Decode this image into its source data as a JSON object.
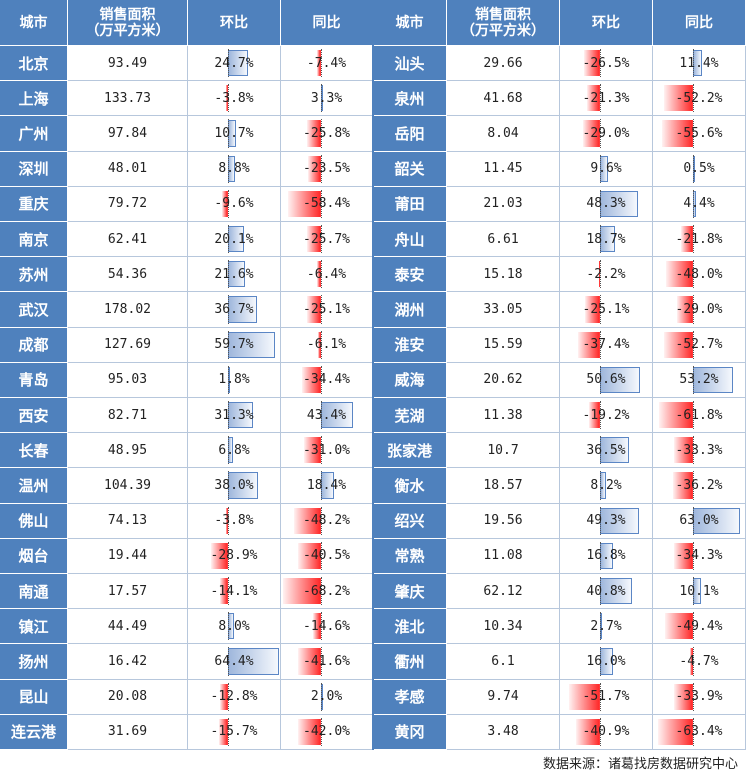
{
  "headers": {
    "city": "城市",
    "area": "销售面积\n（万平方米）",
    "mom": "环比",
    "yoy": "同比"
  },
  "source": "数据来源：诸葛找房数据研究中心",
  "colors": {
    "header_bg": "#4f81bd",
    "positive_bar": "#5b86c5",
    "negative_bar": "#ff2a2a"
  },
  "chart_data": {
    "type": "table",
    "columns": [
      "城市",
      "销售面积（万平方米）",
      "环比",
      "同比"
    ],
    "left_rows": [
      {
        "city": "北京",
        "area": "93.49",
        "mom": 24.7,
        "mom_text": "24.7%",
        "yoy": -7.4,
        "yoy_text": "-7.4%"
      },
      {
        "city": "上海",
        "area": "133.73",
        "mom": -3.8,
        "mom_text": "-3.8%",
        "yoy": 3.3,
        "yoy_text": "3.3%"
      },
      {
        "city": "广州",
        "area": "97.84",
        "mom": 10.7,
        "mom_text": "10.7%",
        "yoy": -25.8,
        "yoy_text": "-25.8%"
      },
      {
        "city": "深圳",
        "area": "48.01",
        "mom": 8.8,
        "mom_text": "8.8%",
        "yoy": -23.5,
        "yoy_text": "-23.5%"
      },
      {
        "city": "重庆",
        "area": "79.72",
        "mom": -9.6,
        "mom_text": "-9.6%",
        "yoy": -58.4,
        "yoy_text": "-58.4%"
      },
      {
        "city": "南京",
        "area": "62.41",
        "mom": 20.1,
        "mom_text": "20.1%",
        "yoy": -25.7,
        "yoy_text": "-25.7%"
      },
      {
        "city": "苏州",
        "area": "54.36",
        "mom": 21.6,
        "mom_text": "21.6%",
        "yoy": -6.4,
        "yoy_text": "-6.4%"
      },
      {
        "city": "武汉",
        "area": "178.02",
        "mom": 36.7,
        "mom_text": "36.7%",
        "yoy": -25.1,
        "yoy_text": "-25.1%"
      },
      {
        "city": "成都",
        "area": "127.69",
        "mom": 59.7,
        "mom_text": "59.7%",
        "yoy": -6.1,
        "yoy_text": "-6.1%"
      },
      {
        "city": "青岛",
        "area": "95.03",
        "mom": 1.8,
        "mom_text": "1.8%",
        "yoy": -34.4,
        "yoy_text": "-34.4%"
      },
      {
        "city": "西安",
        "area": "82.71",
        "mom": 31.3,
        "mom_text": "31.3%",
        "yoy": 43.4,
        "yoy_text": "43.4%"
      },
      {
        "city": "长春",
        "area": "48.95",
        "mom": 6.8,
        "mom_text": "6.8%",
        "yoy": -31.0,
        "yoy_text": "-31.0%"
      },
      {
        "city": "温州",
        "area": "104.39",
        "mom": 38.0,
        "mom_text": "38.0%",
        "yoy": 18.4,
        "yoy_text": "18.4%"
      },
      {
        "city": "佛山",
        "area": "74.13",
        "mom": -3.8,
        "mom_text": "-3.8%",
        "yoy": -48.2,
        "yoy_text": "-48.2%"
      },
      {
        "city": "烟台",
        "area": "19.44",
        "mom": -28.9,
        "mom_text": "-28.9%",
        "yoy": -40.5,
        "yoy_text": "-40.5%"
      },
      {
        "city": "南通",
        "area": "17.57",
        "mom": -14.1,
        "mom_text": "-14.1%",
        "yoy": -68.2,
        "yoy_text": "-68.2%"
      },
      {
        "city": "镇江",
        "area": "44.49",
        "mom": 8.0,
        "mom_text": "8.0%",
        "yoy": -14.6,
        "yoy_text": "-14.6%"
      },
      {
        "city": "扬州",
        "area": "16.42",
        "mom": 64.4,
        "mom_text": "64.4%",
        "yoy": -41.6,
        "yoy_text": "-41.6%"
      },
      {
        "city": "昆山",
        "area": "20.08",
        "mom": -12.8,
        "mom_text": "-12.8%",
        "yoy": 2.0,
        "yoy_text": "2.0%"
      },
      {
        "city": "连云港",
        "area": "31.69",
        "mom": -15.7,
        "mom_text": "-15.7%",
        "yoy": -42.0,
        "yoy_text": "-42.0%"
      }
    ],
    "right_rows": [
      {
        "city": "汕头",
        "area": "29.66",
        "mom": -26.5,
        "mom_text": "-26.5%",
        "yoy": 11.4,
        "yoy_text": "11.4%"
      },
      {
        "city": "泉州",
        "area": "41.68",
        "mom": -21.3,
        "mom_text": "-21.3%",
        "yoy": -52.2,
        "yoy_text": "-52.2%"
      },
      {
        "city": "岳阳",
        "area": "8.04",
        "mom": -29.0,
        "mom_text": "-29.0%",
        "yoy": -55.6,
        "yoy_text": "-55.6%"
      },
      {
        "city": "韶关",
        "area": "11.45",
        "mom": 9.6,
        "mom_text": "9.6%",
        "yoy": 0.5,
        "yoy_text": "0.5%"
      },
      {
        "city": "莆田",
        "area": "21.03",
        "mom": 48.3,
        "mom_text": "48.3%",
        "yoy": 4.4,
        "yoy_text": "4.4%"
      },
      {
        "city": "舟山",
        "area": "6.61",
        "mom": 18.7,
        "mom_text": "18.7%",
        "yoy": -21.8,
        "yoy_text": "-21.8%"
      },
      {
        "city": "泰安",
        "area": "15.18",
        "mom": -2.2,
        "mom_text": "-2.2%",
        "yoy": -48.0,
        "yoy_text": "-48.0%"
      },
      {
        "city": "湖州",
        "area": "33.05",
        "mom": -25.1,
        "mom_text": "-25.1%",
        "yoy": -29.0,
        "yoy_text": "-29.0%"
      },
      {
        "city": "淮安",
        "area": "15.59",
        "mom": -37.4,
        "mom_text": "-37.4%",
        "yoy": -52.7,
        "yoy_text": "-52.7%"
      },
      {
        "city": "威海",
        "area": "20.62",
        "mom": 50.6,
        "mom_text": "50.6%",
        "yoy": 53.2,
        "yoy_text": "53.2%"
      },
      {
        "city": "芜湖",
        "area": "11.38",
        "mom": -19.2,
        "mom_text": "-19.2%",
        "yoy": -61.8,
        "yoy_text": "-61.8%"
      },
      {
        "city": "张家港",
        "area": "10.7",
        "mom": 36.5,
        "mom_text": "36.5%",
        "yoy": -33.3,
        "yoy_text": "-33.3%"
      },
      {
        "city": "衡水",
        "area": "18.57",
        "mom": 8.2,
        "mom_text": "8.2%",
        "yoy": -36.2,
        "yoy_text": "-36.2%"
      },
      {
        "city": "绍兴",
        "area": "19.56",
        "mom": 49.3,
        "mom_text": "49.3%",
        "yoy": 63.0,
        "yoy_text": "63.0%"
      },
      {
        "city": "常熟",
        "area": "11.08",
        "mom": 16.8,
        "mom_text": "16.8%",
        "yoy": -34.3,
        "yoy_text": "-34.3%"
      },
      {
        "city": "肇庆",
        "area": "62.12",
        "mom": 40.8,
        "mom_text": "40.8%",
        "yoy": 10.1,
        "yoy_text": "10.1%"
      },
      {
        "city": "淮北",
        "area": "10.34",
        "mom": 2.7,
        "mom_text": "2.7%",
        "yoy": -49.4,
        "yoy_text": "-49.4%"
      },
      {
        "city": "衢州",
        "area": "6.1",
        "mom": 16.0,
        "mom_text": "16.0%",
        "yoy": -4.7,
        "yoy_text": "-4.7%"
      },
      {
        "city": "孝感",
        "area": "9.74",
        "mom": -51.7,
        "mom_text": "-51.7%",
        "yoy": -33.9,
        "yoy_text": "-33.9%"
      },
      {
        "city": "黄冈",
        "area": "3.48",
        "mom": -40.9,
        "mom_text": "-40.9%",
        "yoy": -63.4,
        "yoy_text": "-63.4%"
      }
    ]
  }
}
